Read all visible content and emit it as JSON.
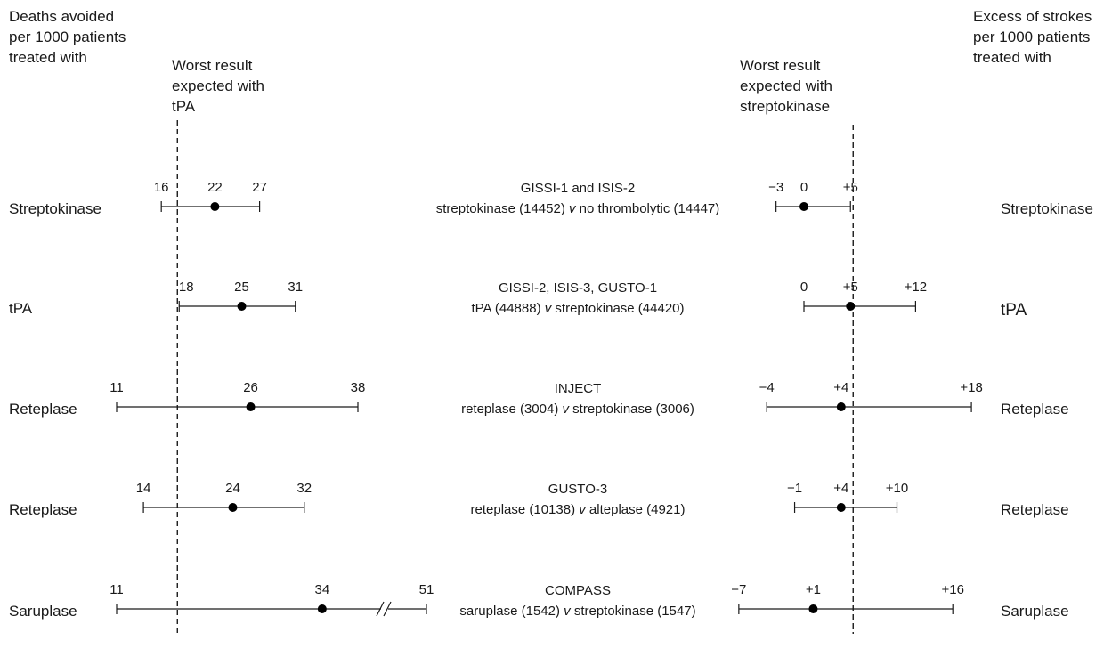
{
  "headers": {
    "left": [
      "Deaths avoided",
      "per 1000 patients",
      "treated with"
    ],
    "right": [
      "Excess of strokes",
      "per 1000 patients",
      "treated with"
    ],
    "left_ref": [
      "Worst result",
      "expected with",
      "tPA"
    ],
    "right_ref": [
      "Worst result",
      "expected with",
      "streptokinase"
    ]
  },
  "chart_data": {
    "type": "forest",
    "left_panel": {
      "measure": "Deaths avoided per 1000 patients",
      "reference_value": 18,
      "axis_break": [
        38,
        51
      ]
    },
    "right_panel": {
      "measure": "Excess of strokes per 1000 patients",
      "reference_value": 5
    },
    "rows": [
      {
        "left_label": "Streptokinase",
        "right_label": "Streptokinase",
        "trial": "GISSI-1 and ISIS-2",
        "comparison": [
          "streptokinase (14452) ",
          "v",
          " no thrombolytic (14447)"
        ],
        "deaths": {
          "lo": 16,
          "est": 22,
          "hi": 27,
          "lo_label": "16",
          "est_label": "22",
          "hi_label": "27"
        },
        "strokes": {
          "lo": -3,
          "est": 0,
          "hi": 5,
          "lo_label": "−3",
          "est_label": "0",
          "hi_label": "+5"
        }
      },
      {
        "left_label": "tPA",
        "right_label": "tPA",
        "trial": "GISSI-2, ISIS-3, GUSTO-1",
        "comparison": [
          "tPA (44888) ",
          "v",
          " streptokinase (44420)"
        ],
        "deaths": {
          "lo": 18,
          "est": 25,
          "hi": 31,
          "lo_label": "18",
          "est_label": "25",
          "hi_label": "31"
        },
        "strokes": {
          "lo": 0,
          "est": 5,
          "hi": 12,
          "lo_label": "0",
          "est_label": "+5",
          "hi_label": "+12"
        }
      },
      {
        "left_label": "Reteplase",
        "right_label": "Reteplase",
        "trial": "INJECT",
        "comparison": [
          "reteplase (3004) ",
          "v",
          " streptokinase (3006)"
        ],
        "deaths": {
          "lo": 11,
          "est": 26,
          "hi": 38,
          "lo_label": "11",
          "est_label": "26",
          "hi_label": "38"
        },
        "strokes": {
          "lo": -4,
          "est": 4,
          "hi": 18,
          "lo_label": "−4",
          "est_label": "+4",
          "hi_label": "+18"
        }
      },
      {
        "left_label": "Reteplase",
        "right_label": "Reteplase",
        "trial": "GUSTO-3",
        "comparison": [
          "reteplase (10138) ",
          "v",
          " alteplase (4921)"
        ],
        "deaths": {
          "lo": 14,
          "est": 24,
          "hi": 32,
          "lo_label": "14",
          "est_label": "24",
          "hi_label": "32"
        },
        "strokes": {
          "lo": -1,
          "est": 4,
          "hi": 10,
          "lo_label": "−1",
          "est_label": "+4",
          "hi_label": "+10"
        }
      },
      {
        "left_label": "Saruplase",
        "right_label": "Saruplase",
        "trial": "COMPASS",
        "comparison": [
          "saruplase (1542) ",
          "v",
          " streptokinase (1547)"
        ],
        "deaths": {
          "lo": 11,
          "est": 34,
          "hi": 51,
          "lo_label": "11",
          "est_label": "34",
          "hi_label": "51"
        },
        "strokes": {
          "lo": -7,
          "est": 1,
          "hi": 16,
          "lo_label": "−7",
          "est_label": "+1",
          "hi_label": "+16"
        }
      }
    ]
  }
}
